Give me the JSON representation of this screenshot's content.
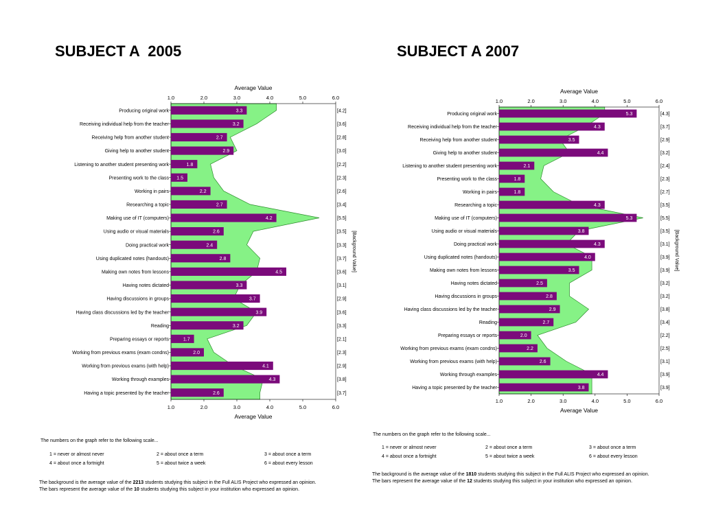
{
  "chart_data": [
    {
      "type": "bar",
      "title": "SUBJECT A  2005",
      "xlabel": "Average Value",
      "side_label": "[Background Value]",
      "xlim": [
        1.0,
        6.0
      ],
      "xticks": [
        "1.0",
        "2.0",
        "3.0",
        "4.0",
        "5.0",
        "6.0"
      ],
      "categories": [
        "Producing original work",
        "Receiving individual help from the teacher",
        "Receiving help from another student",
        "Giving help to another student",
        "Listening to another student presenting work",
        "Presenting work to the class",
        "Working in pairs",
        "Researching a topic",
        "Making use of IT (computers)",
        "Using audio or visual materials",
        "Doing practical work",
        "Using duplicated notes (handouts)",
        "Making own notes from lessons",
        "Having notes dictated",
        "Having discussions in groups",
        "Having class discussions led by the teacher",
        "Reading",
        "Preparing essays or reports",
        "Working from previous exams (exam condns)",
        "Working from previous exams (with help)",
        "Working through examples",
        "Having a topic presented by the teacher"
      ],
      "series": [
        {
          "name": "Bars",
          "values": [
            3.3,
            3.2,
            2.7,
            2.9,
            1.8,
            1.5,
            2.2,
            2.7,
            4.2,
            2.6,
            2.4,
            2.8,
            4.5,
            3.3,
            3.7,
            3.9,
            3.2,
            1.7,
            2.0,
            4.1,
            4.3,
            2.6
          ]
        },
        {
          "name": "Background",
          "values": [
            4.2,
            3.6,
            2.8,
            3.0,
            2.2,
            2.3,
            2.6,
            3.4,
            5.5,
            3.5,
            3.3,
            3.7,
            3.6,
            3.1,
            2.9,
            3.6,
            3.3,
            2.1,
            2.3,
            2.9,
            3.8,
            3.7
          ]
        }
      ],
      "background_labels": [
        "[4.2]",
        "[3.6]",
        "[2.8]",
        "[3.0]",
        "[2.2]",
        "[2.3]",
        "[2.6]",
        "[3.4]",
        "[5.5]",
        "[3.5]",
        "[3.3]",
        "[3.7]",
        "[3.6]",
        "[3.1]",
        "[2.9]",
        "[3.6]",
        "[3.3]",
        "[2.1]",
        "[2.3]",
        "[2.9]",
        "[3.8]",
        "[3.7]"
      ],
      "colors": {
        "bar": "#7b0a7b",
        "background": "#86f286",
        "background_edge": "#2a8a2a"
      }
    },
    {
      "type": "bar",
      "title": "SUBJECT A 2007",
      "xlabel": "Average Value",
      "side_label": "[Background Value]",
      "xlim": [
        1.0,
        6.0
      ],
      "xticks": [
        "1.0",
        "2.0",
        "3.0",
        "4.0",
        "5.0",
        "6.0"
      ],
      "categories": [
        "Producing original work",
        "Receiving individual help from the teacher",
        "Receiving help from another student",
        "Giving help to another student",
        "Listening to another student presenting work",
        "Presenting work to the class",
        "Working in pairs",
        "Researching a topic",
        "Making use of IT (computers)",
        "Using audio or visual materials",
        "Doing practical work",
        "Using duplicated notes (handouts)",
        "Making own notes from lessons",
        "Having notes dictated",
        "Having discussions in groups",
        "Having class discussions led by the teacher",
        "Reading",
        "Preparing essays or reports",
        "Working from previous exams (exam condns)",
        "Working from previous exams (with help)",
        "Working through examples",
        "Having a topic presented by the teacher"
      ],
      "series": [
        {
          "name": "Bars",
          "values": [
            5.3,
            4.3,
            3.5,
            4.4,
            2.1,
            1.8,
            1.8,
            4.3,
            5.3,
            3.8,
            4.3,
            4.0,
            3.5,
            2.5,
            2.8,
            2.9,
            2.7,
            2.0,
            2.2,
            2.6,
            4.4,
            3.8
          ]
        },
        {
          "name": "Background",
          "values": [
            4.3,
            3.7,
            2.9,
            3.2,
            2.4,
            2.3,
            2.7,
            3.5,
            5.5,
            3.5,
            3.1,
            3.9,
            3.9,
            3.2,
            3.2,
            3.8,
            3.4,
            2.2,
            2.5,
            3.1,
            3.9,
            3.9
          ]
        }
      ],
      "background_labels": [
        "[4.3]",
        "[3.7]",
        "[2.9]",
        "[3.2]",
        "[2.4]",
        "[2.3]",
        "[2.7]",
        "[3.5]",
        "[5.5]",
        "[3.5]",
        "[3.1]",
        "[3.9]",
        "[3.9]",
        "[3.2]",
        "[3.2]",
        "[3.8]",
        "[3.4]",
        "[2.2]",
        "[2.5]",
        "[3.1]",
        "[3.9]",
        "[3.9]"
      ],
      "colors": {
        "bar": "#7b0a7b",
        "background": "#86f286",
        "background_edge": "#2a8a2a"
      }
    }
  ],
  "notes": [
    {
      "scale_intro": "The numbers on the graph refer to the following scale...",
      "scale": [
        "1 = never or almost never",
        "2 = about once a term",
        "3 = about once a term",
        "4 = about once a fortnight",
        "5 = about twice a week",
        "6 = about every lesson"
      ],
      "bg_pre": "The background is the average value of the ",
      "bg_count": "2213",
      "bg_post": " students studying this subject in the Full ALIS Project who expressed an opinion.",
      "bars_pre": "The bars represent the average value of the ",
      "bars_count": "10",
      "bars_post": " students studying this subject in your institution who expressed an opinion."
    },
    {
      "scale_intro": "The numbers on the graph refer to the following scale...",
      "scale": [
        "1 = never or almost never",
        "2 = about once a term",
        "3 = about once a term",
        "4 = about once a fortnight",
        "5 = about twice a week",
        "6 = about every lesson"
      ],
      "bg_pre": "The background is the average value of the ",
      "bg_count": "1810",
      "bg_post": " students studying this subject in the Full ALIS Project who expressed an opinion.",
      "bars_pre": "The bars represent the average value of the ",
      "bars_count": "12",
      "bars_post": " students studying this subject in your institution who expressed an opinion."
    }
  ]
}
